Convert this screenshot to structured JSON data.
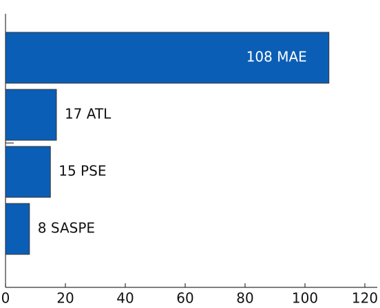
{
  "chart_data": {
    "type": "bar",
    "orientation": "horizontal",
    "values": [
      108,
      17,
      15,
      8
    ],
    "value_labels": [
      "108 MAE",
      "17 ATL",
      "15 PSE",
      "8 SASPE"
    ],
    "color": "#0b5eb5",
    "xlim": [
      0,
      120
    ],
    "xticks": [
      0,
      20,
      40,
      60,
      80,
      100,
      120
    ],
    "grid": false
  }
}
